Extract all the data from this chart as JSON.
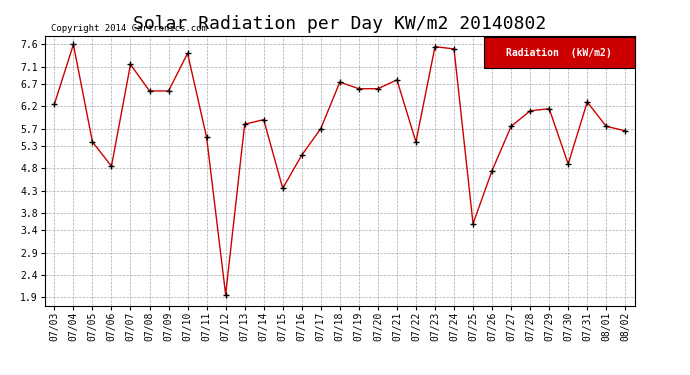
{
  "title": "Solar Radiation per Day KW/m2 20140802",
  "copyright": "Copyright 2014 Cartronics.com",
  "legend_label": "Radiation  (kW/m2)",
  "dates": [
    "07/03",
    "07/04",
    "07/05",
    "07/06",
    "07/07",
    "07/08",
    "07/09",
    "07/10",
    "07/11",
    "07/12",
    "07/13",
    "07/14",
    "07/15",
    "07/16",
    "07/17",
    "07/18",
    "07/19",
    "07/20",
    "07/21",
    "07/22",
    "07/23",
    "07/24",
    "07/25",
    "07/26",
    "07/27",
    "07/28",
    "07/29",
    "07/30",
    "07/31",
    "08/01",
    "08/02"
  ],
  "values": [
    6.25,
    7.6,
    5.4,
    4.85,
    7.15,
    6.55,
    6.55,
    7.4,
    5.5,
    1.95,
    5.8,
    5.9,
    4.35,
    5.1,
    5.7,
    6.75,
    6.6,
    6.6,
    6.8,
    5.4,
    7.55,
    7.5,
    3.55,
    4.75,
    5.75,
    6.1,
    6.15,
    4.9,
    6.3,
    5.75,
    5.65
  ],
  "line_color": "#cc0000",
  "marker_color": "#000000",
  "background_color": "#ffffff",
  "plot_bg_color": "#ffffff",
  "grid_color": "#aaaaaa",
  "ylim": [
    1.7,
    7.8
  ],
  "yticks": [
    1.9,
    2.4,
    2.9,
    3.4,
    3.8,
    4.3,
    4.8,
    5.3,
    5.7,
    6.2,
    6.7,
    7.1,
    7.6
  ],
  "title_fontsize": 13,
  "tick_fontsize": 7,
  "copyright_fontsize": 6.5,
  "legend_bg": "#cc0000",
  "legend_text_color": "#ffffff",
  "legend_fontsize": 7
}
